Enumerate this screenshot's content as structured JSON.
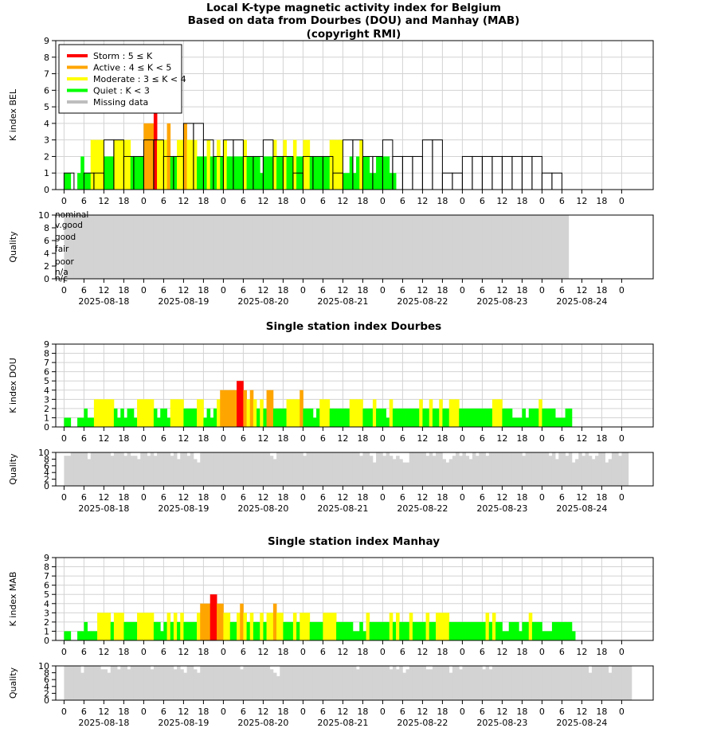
{
  "header": {
    "title_lines": [
      "Local K-type magnetic activity index for Belgium",
      "Based on data from Dourbes (DOU) and Manhay (MAB)",
      "(copyright RMI)"
    ]
  },
  "legend": {
    "placement": "top-left",
    "entries": [
      {
        "label": "Storm : 5 ≤ K",
        "color": "#ff0000"
      },
      {
        "label": "Active : 4 ≤ K < 5",
        "color": "#ffa500"
      },
      {
        "label": "Moderate : 3 ≤ K < 4",
        "color": "#ffff00"
      },
      {
        "label": "Quiet : K < 3",
        "color": "#00ff00"
      },
      {
        "label": "Missing data",
        "color": "#bebebe"
      }
    ]
  },
  "colors": {
    "storm": "#ff0000",
    "active": "#ffa500",
    "moderate": "#ffff00",
    "quiet": "#00ff00",
    "missing": "#bebebe",
    "quality": "#d3d3d3",
    "grid": "#d3d3d3"
  },
  "x_axis": {
    "hour_ticks": [
      "0",
      "6",
      "12",
      "18",
      "0",
      "6",
      "12",
      "18",
      "0",
      "6",
      "12",
      "18",
      "0",
      "6",
      "12",
      "18",
      "0",
      "6",
      "12",
      "18",
      "0",
      "6",
      "12",
      "18",
      "0",
      "6",
      "12",
      "18",
      "0"
    ],
    "dates": [
      "2025-08-18",
      "2025-08-19",
      "2025-08-20",
      "2025-08-21",
      "2025-08-22",
      "2025-08-23",
      "2025-08-24"
    ],
    "range_hours": [
      0,
      168
    ]
  },
  "panels": {
    "bel": {
      "ylabel": "K index BEL",
      "ylim": [
        0,
        9
      ],
      "y_ticks": [
        "0",
        "1",
        "2",
        "3",
        "4",
        "5",
        "6",
        "7",
        "8",
        "9"
      ]
    },
    "bel_quality": {
      "ylabel": "Quality",
      "ylim": [
        0,
        10
      ],
      "y_ticks": [
        "0",
        "2",
        "4",
        "6",
        "8",
        "10"
      ],
      "level_labels": [
        "nominal",
        "v.good",
        "good",
        "fair",
        "poor",
        "n/a",
        "n/c"
      ]
    },
    "dou": {
      "title": "Single station index Dourbes",
      "ylabel": "K index DOU",
      "ylim": [
        0,
        9
      ],
      "y_ticks": [
        "0",
        "1",
        "2",
        "3",
        "4",
        "5",
        "6",
        "7",
        "8",
        "9"
      ]
    },
    "dou_quality": {
      "ylabel": "Quality",
      "ylim": [
        0,
        10
      ],
      "y_ticks": [
        "0",
        "2",
        "4",
        "6",
        "8",
        "10"
      ]
    },
    "mab": {
      "title": "Single station index Manhay",
      "ylabel": "K index MAB",
      "ylim": [
        0,
        9
      ],
      "y_ticks": [
        "0",
        "1",
        "2",
        "3",
        "4",
        "5",
        "6",
        "7",
        "8",
        "9"
      ]
    },
    "mab_quality": {
      "ylabel": "Quality",
      "ylim": [
        0,
        10
      ],
      "y_ticks": [
        "0",
        "2",
        "4",
        "6",
        "8",
        "10"
      ]
    }
  },
  "chart_data": [
    {
      "type": "bar",
      "title": "Local K-type magnetic activity index for Belgium",
      "ylabel": "K index BEL",
      "ylim": [
        0,
        9
      ],
      "bar_width_hours": 3,
      "k_3h": [
        1,
        0,
        1,
        1,
        3,
        3,
        2,
        2,
        3,
        3,
        2,
        2,
        4,
        4,
        3,
        2,
        3,
        3,
        2,
        2,
        3,
        2,
        2,
        1,
        2,
        2,
        2,
        1,
        3,
        3,
        2,
        2,
        3,
        2,
        2,
        2,
        3,
        3,
        1,
        1,
        2,
        2,
        2,
        2,
        2,
        2,
        2,
        2,
        1,
        1
      ],
      "k_1h": [
        1,
        1,
        0,
        0,
        1,
        2,
        1,
        1,
        3,
        3,
        3,
        3,
        2,
        2,
        2,
        3,
        3,
        3,
        3,
        3,
        2,
        2,
        2,
        2,
        4,
        4,
        4,
        5,
        3,
        3,
        3,
        4,
        2,
        2,
        3,
        3,
        4,
        3,
        3,
        3,
        2,
        2,
        2,
        3,
        2,
        2,
        3,
        2,
        3,
        2,
        2,
        2,
        2,
        2,
        3,
        2,
        2,
        2,
        2,
        1,
        2,
        2,
        2,
        3,
        2,
        2,
        3,
        2,
        2,
        3,
        2,
        2,
        3,
        3,
        2,
        2,
        2,
        2,
        2,
        2,
        3,
        3,
        3,
        3,
        1,
        1,
        2,
        1,
        2,
        3,
        2,
        2,
        1,
        1,
        2,
        2,
        2,
        2,
        1,
        1
      ]
    },
    {
      "type": "bar",
      "ylabel": "Quality",
      "ylim": [
        0,
        10
      ],
      "quality_hourly": [
        10,
        10,
        10,
        10,
        10,
        10,
        10,
        10,
        10,
        10,
        10,
        10,
        10,
        10,
        10,
        10,
        10,
        10,
        10,
        10,
        10,
        10,
        10,
        10,
        10,
        10,
        10,
        10,
        10,
        10,
        10,
        10,
        10,
        10,
        10,
        10,
        10,
        10,
        10,
        10,
        10,
        10,
        10,
        10,
        10,
        10,
        10,
        10,
        10,
        10,
        10,
        10,
        10,
        10,
        10,
        10,
        10,
        10,
        10,
        10,
        10,
        10,
        10,
        10,
        10,
        10,
        10,
        10,
        10,
        10,
        10,
        10,
        10,
        10,
        10,
        10,
        10,
        10,
        10,
        10,
        10,
        10,
        10,
        10,
        10,
        10,
        10,
        10,
        10,
        10,
        10,
        10,
        10,
        10,
        10,
        10,
        10,
        10,
        10,
        10,
        10,
        10,
        10,
        10,
        10,
        10,
        10,
        10,
        10,
        10,
        10,
        10,
        10,
        10,
        10,
        10,
        10,
        10,
        10,
        10,
        10,
        10,
        10,
        10,
        10,
        10,
        10,
        10,
        10,
        10,
        10,
        10,
        10,
        10,
        10,
        10,
        10,
        10,
        10,
        10,
        10,
        10,
        10,
        10,
        10,
        10,
        10,
        10,
        10,
        10,
        10,
        10
      ]
    },
    {
      "type": "bar",
      "title": "Single station index Dourbes",
      "ylabel": "K index DOU",
      "ylim": [
        0,
        9
      ],
      "k_1h": [
        1,
        1,
        0,
        0,
        1,
        1,
        2,
        1,
        1,
        3,
        3,
        3,
        3,
        3,
        3,
        2,
        1,
        2,
        1,
        2,
        2,
        1,
        3,
        3,
        3,
        3,
        3,
        2,
        1,
        2,
        2,
        1,
        3,
        3,
        3,
        3,
        2,
        2,
        2,
        2,
        3,
        3,
        1,
        2,
        1,
        2,
        3,
        4,
        4,
        4,
        4,
        4,
        5,
        5,
        4,
        3,
        4,
        3,
        2,
        3,
        2,
        4,
        4,
        2,
        2,
        2,
        2,
        3,
        3,
        3,
        3,
        4,
        2,
        2,
        2,
        1,
        2,
        3,
        3,
        3,
        2,
        2,
        2,
        2,
        2,
        2,
        3,
        3,
        3,
        3,
        2,
        2,
        2,
        3,
        2,
        2,
        2,
        1,
        3,
        2,
        2,
        2,
        2,
        2,
        2,
        2,
        2,
        3,
        2,
        2,
        3,
        2,
        2,
        3,
        2,
        2,
        3,
        3,
        3,
        2,
        2,
        2,
        2,
        2,
        2,
        2,
        2,
        2,
        2,
        3,
        3,
        3,
        2,
        2,
        2,
        1,
        1,
        1,
        2,
        1,
        2,
        2,
        2,
        3,
        2,
        2,
        2,
        2,
        1,
        1,
        1,
        2,
        2
      ],
      "quality_hourly": [
        9,
        9,
        10,
        10,
        10,
        10,
        10,
        8,
        10,
        10,
        10,
        10,
        10,
        10,
        9,
        10,
        10,
        10,
        9,
        10,
        9,
        9,
        8,
        10,
        10,
        9,
        10,
        9,
        10,
        10,
        10,
        10,
        9,
        10,
        8,
        10,
        10,
        9,
        10,
        8,
        7,
        10,
        10,
        10,
        10,
        10,
        10,
        10,
        10,
        10,
        10,
        10,
        10,
        10,
        10,
        10,
        10,
        10,
        10,
        10,
        10,
        10,
        9,
        8,
        10,
        10,
        10,
        10,
        10,
        10,
        10,
        10,
        9,
        10,
        10,
        10,
        10,
        10,
        10,
        10,
        10,
        10,
        10,
        10,
        10,
        10,
        10,
        10,
        10,
        9,
        10,
        10,
        9,
        7,
        10,
        10,
        9,
        10,
        9,
        8,
        9,
        8,
        7,
        7,
        10,
        10,
        10,
        10,
        10,
        9,
        10,
        9,
        10,
        10,
        8,
        7,
        8,
        9,
        10,
        9,
        10,
        9,
        8,
        10,
        9,
        10,
        10,
        9,
        10,
        10,
        10,
        10,
        10,
        10,
        10,
        10,
        10,
        10,
        9,
        10,
        10,
        10,
        10,
        10,
        10,
        10,
        9,
        10,
        8,
        10,
        10,
        9,
        10,
        7,
        8,
        10,
        9,
        10,
        9,
        8,
        9,
        10,
        10,
        7,
        8,
        10,
        10,
        9,
        10,
        10
      ]
    },
    {
      "type": "bar",
      "title": "Single station index Manhay",
      "ylabel": "K index MAB",
      "ylim": [
        0,
        9
      ],
      "k_1h": [
        1,
        1,
        0,
        0,
        1,
        1,
        2,
        1,
        1,
        1,
        3,
        3,
        3,
        3,
        2,
        3,
        3,
        3,
        2,
        2,
        2,
        2,
        3,
        3,
        3,
        3,
        3,
        2,
        2,
        1,
        2,
        3,
        2,
        3,
        2,
        3,
        2,
        2,
        2,
        2,
        3,
        4,
        4,
        4,
        5,
        5,
        4,
        4,
        3,
        3,
        2,
        2,
        3,
        4,
        3,
        2,
        3,
        2,
        2,
        3,
        2,
        3,
        3,
        4,
        3,
        3,
        2,
        2,
        2,
        3,
        2,
        3,
        3,
        3,
        2,
        2,
        2,
        2,
        3,
        3,
        3,
        3,
        2,
        2,
        2,
        2,
        2,
        1,
        1,
        2,
        1,
        3,
        2,
        2,
        2,
        2,
        2,
        2,
        3,
        2,
        3,
        2,
        2,
        2,
        3,
        2,
        2,
        2,
        2,
        3,
        2,
        2,
        3,
        3,
        3,
        3,
        2,
        2,
        2,
        2,
        2,
        2,
        2,
        2,
        2,
        2,
        2,
        3,
        2,
        3,
        2,
        2,
        1,
        1,
        2,
        2,
        2,
        1,
        2,
        2,
        3,
        2,
        2,
        2,
        1,
        1,
        1,
        2,
        2,
        2,
        2,
        2,
        2,
        1
      ],
      "quality_hourly": [
        10,
        10,
        10,
        10,
        10,
        8,
        10,
        10,
        10,
        10,
        10,
        9,
        9,
        8,
        10,
        10,
        9,
        10,
        10,
        9,
        10,
        10,
        10,
        10,
        10,
        10,
        9,
        10,
        10,
        10,
        10,
        10,
        10,
        9,
        10,
        9,
        8,
        10,
        10,
        9,
        8,
        10,
        10,
        10,
        10,
        10,
        10,
        10,
        10,
        10,
        10,
        10,
        10,
        9,
        10,
        10,
        10,
        10,
        10,
        10,
        10,
        10,
        9,
        8,
        7,
        10,
        10,
        10,
        10,
        10,
        10,
        10,
        10,
        10,
        10,
        10,
        10,
        10,
        10,
        10,
        10,
        10,
        10,
        10,
        10,
        10,
        10,
        10,
        9,
        10,
        10,
        10,
        10,
        10,
        10,
        10,
        10,
        10,
        9,
        10,
        9,
        10,
        8,
        9,
        10,
        10,
        10,
        10,
        10,
        9,
        9,
        10,
        10,
        10,
        10,
        10,
        8,
        10,
        10,
        9,
        10,
        10,
        10,
        10,
        10,
        10,
        9,
        10,
        9,
        10,
        10,
        10,
        10,
        10,
        10,
        10,
        10,
        10,
        10,
        10,
        10,
        10,
        10,
        10,
        10,
        10,
        10,
        10,
        10,
        10,
        10,
        10,
        10,
        10,
        10,
        10,
        10,
        10,
        8,
        10,
        10,
        10,
        10,
        10,
        8,
        10,
        10,
        10,
        10,
        10,
        10
      ]
    }
  ]
}
